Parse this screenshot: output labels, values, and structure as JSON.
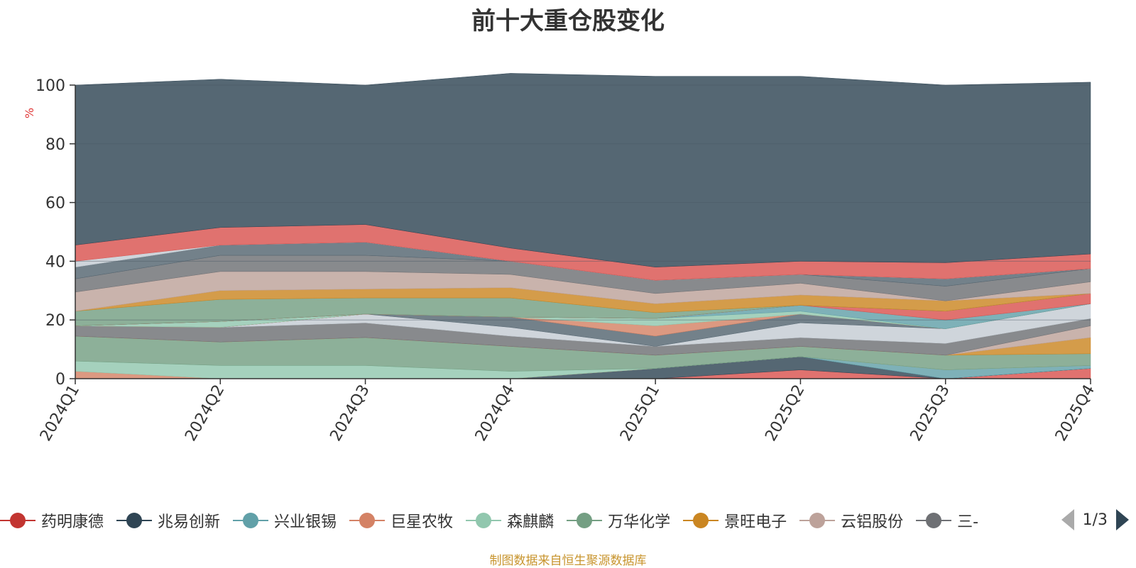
{
  "chart_data": {
    "type": "area",
    "title": "前十大重仓股变化",
    "ylabel": "%",
    "ylim": [
      0,
      100
    ],
    "yticks": [
      0,
      20,
      40,
      60,
      80,
      100
    ],
    "categories": [
      "2024Q1",
      "2024Q2",
      "2024Q3",
      "2024Q4",
      "2025Q1",
      "2025Q2",
      "2025Q3",
      "2025Q4"
    ],
    "grid": true,
    "legend_position": "bottom",
    "series": [
      {
        "name": "药明康德",
        "color": "#d9534f",
        "values": [
          0,
          0,
          0,
          0,
          0,
          3,
          0,
          3.5
        ]
      },
      {
        "name": "兆易创新",
        "color": "#2f4554",
        "values": [
          0,
          0,
          0,
          0,
          3.5,
          4.5,
          0,
          0
        ]
      },
      {
        "name": "兴业银锡",
        "color": "#61a0a8",
        "values": [
          0,
          0,
          0,
          0,
          0,
          0,
          3,
          1
        ]
      },
      {
        "name": "巨星农牧",
        "color": "#d48265",
        "values": [
          2.5,
          0,
          0,
          0,
          0,
          0,
          0,
          0
        ]
      },
      {
        "name": "森麒麟",
        "color": "#91c7ae",
        "values": [
          3.5,
          4.5,
          4.5,
          2.5,
          0,
          0,
          0,
          0
        ]
      },
      {
        "name": "万华化学",
        "color": "#749f83",
        "values": [
          8.5,
          8,
          9.5,
          8.5,
          4.5,
          3.5,
          5,
          4
        ]
      },
      {
        "name": "景旺电子",
        "color": "#ca8622",
        "values": [
          0,
          0,
          0,
          0,
          0,
          0,
          0,
          5.5
        ]
      },
      {
        "name": "云铝股份",
        "color": "#bda29a",
        "values": [
          0,
          0,
          0,
          0,
          0,
          0,
          0,
          4
        ]
      },
      {
        "name": "三一",
        "color": "#6e7074",
        "values": [
          3.5,
          5,
          5,
          3.5,
          3,
          3,
          4,
          2.5
        ]
      },
      {
        "name": "",
        "color": "#c4ccd3",
        "values": [
          0,
          0,
          3,
          3,
          0,
          5,
          5,
          5
        ]
      },
      {
        "name": "",
        "color": "#546570",
        "values": [
          0,
          0,
          0,
          3.5,
          3.5,
          3,
          0,
          0
        ]
      },
      {
        "name": "",
        "color": "#d48265",
        "values": [
          0,
          0,
          0,
          0,
          3.5,
          0,
          0,
          0
        ]
      },
      {
        "name": "",
        "color": "#91c7ae",
        "values": [
          0,
          2,
          0,
          0,
          2.5,
          1,
          0,
          0
        ]
      },
      {
        "name": "",
        "color": "#61a0a8",
        "values": [
          0,
          0,
          0,
          0,
          0,
          2,
          3,
          0
        ]
      },
      {
        "name": "",
        "color": "#d9534f",
        "values": [
          0,
          0,
          0,
          0,
          0,
          0,
          3,
          3.5
        ]
      },
      {
        "name": "",
        "color": "#749f83",
        "values": [
          5,
          7.5,
          5.5,
          6.5,
          2,
          0,
          0,
          0
        ]
      },
      {
        "name": "",
        "color": "#ca8622",
        "values": [
          0,
          3,
          3,
          3.5,
          3,
          3.5,
          3.5,
          0
        ]
      },
      {
        "name": "",
        "color": "#bda29a",
        "values": [
          6.5,
          6.5,
          6,
          4.5,
          3.5,
          4,
          0,
          4
        ]
      },
      {
        "name": "",
        "color": "#6e7074",
        "values": [
          4.5,
          5.5,
          5.5,
          4.5,
          4.5,
          3,
          5,
          4.5
        ]
      },
      {
        "name": "",
        "color": "#546570",
        "values": [
          4,
          3.5,
          4.5,
          0,
          0,
          0,
          2.5,
          0
        ]
      },
      {
        "name": "",
        "color": "#c4ccd3",
        "values": [
          2,
          0,
          0,
          0,
          0,
          0,
          0,
          0
        ]
      },
      {
        "name": "",
        "color": "#d9534f",
        "values": [
          5.5,
          6,
          6,
          4.5,
          4.5,
          4.5,
          5.5,
          5
        ]
      },
      {
        "name": "",
        "color": "#2f4554",
        "values": [
          54.5,
          50.5,
          47.5,
          59.5,
          65,
          63,
          60.5,
          58.5
        ]
      }
    ]
  },
  "legend": {
    "items": [
      {
        "label": "药明康德",
        "color": "#c23531"
      },
      {
        "label": "兆易创新",
        "color": "#2f4554"
      },
      {
        "label": "兴业银锡",
        "color": "#61a0a8"
      },
      {
        "label": "巨星农牧",
        "color": "#d48265"
      },
      {
        "label": "森麒麟",
        "color": "#91c7ae"
      },
      {
        "label": "万华化学",
        "color": "#749f83"
      },
      {
        "label": "景旺电子",
        "color": "#ca8622"
      },
      {
        "label": "云铝股份",
        "color": "#bda29a"
      },
      {
        "label": "三-",
        "color": "#6e7074"
      }
    ],
    "page": "1/3"
  },
  "footer": "制图数据来自恒生聚源数据库"
}
